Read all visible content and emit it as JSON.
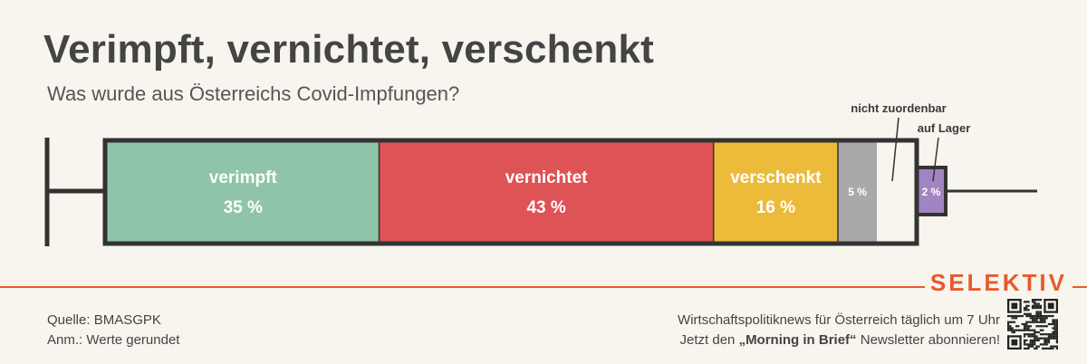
{
  "title": "Verimpft, vernichtet, verschenkt",
  "subtitle": "Was wurde aus Österreichs Covid-Impfungen?",
  "chart_data": {
    "type": "bar",
    "orientation": "horizontal-stacked",
    "categories": [
      "verimpft",
      "vernichtet",
      "verschenkt",
      "nicht zuordenbar",
      "auf Lager"
    ],
    "values": [
      35,
      43,
      16,
      5,
      2
    ],
    "value_labels": [
      "35 %",
      "43 %",
      "16 %",
      "5 %",
      "2 %"
    ],
    "colors": [
      "#8fc4a9",
      "#dd5356",
      "#edbb3a",
      "#a9a9a9",
      "#a185c1"
    ]
  },
  "footer": {
    "source": "Quelle: BMASGPK",
    "note": "Anm.: Werte gerundet",
    "brand": "SELEKTIV",
    "promo_line1": "Wirtschaftspolitiknews für Österreich täglich um 7 Uhr",
    "promo_line2_pre": "Jetzt den ",
    "promo_line2_bold": "„Morning in Brief“",
    "promo_line2_post": " Newsletter abonnieren!"
  },
  "qr_icon": "qr-code-icon",
  "syringe_icon": "syringe-icon"
}
